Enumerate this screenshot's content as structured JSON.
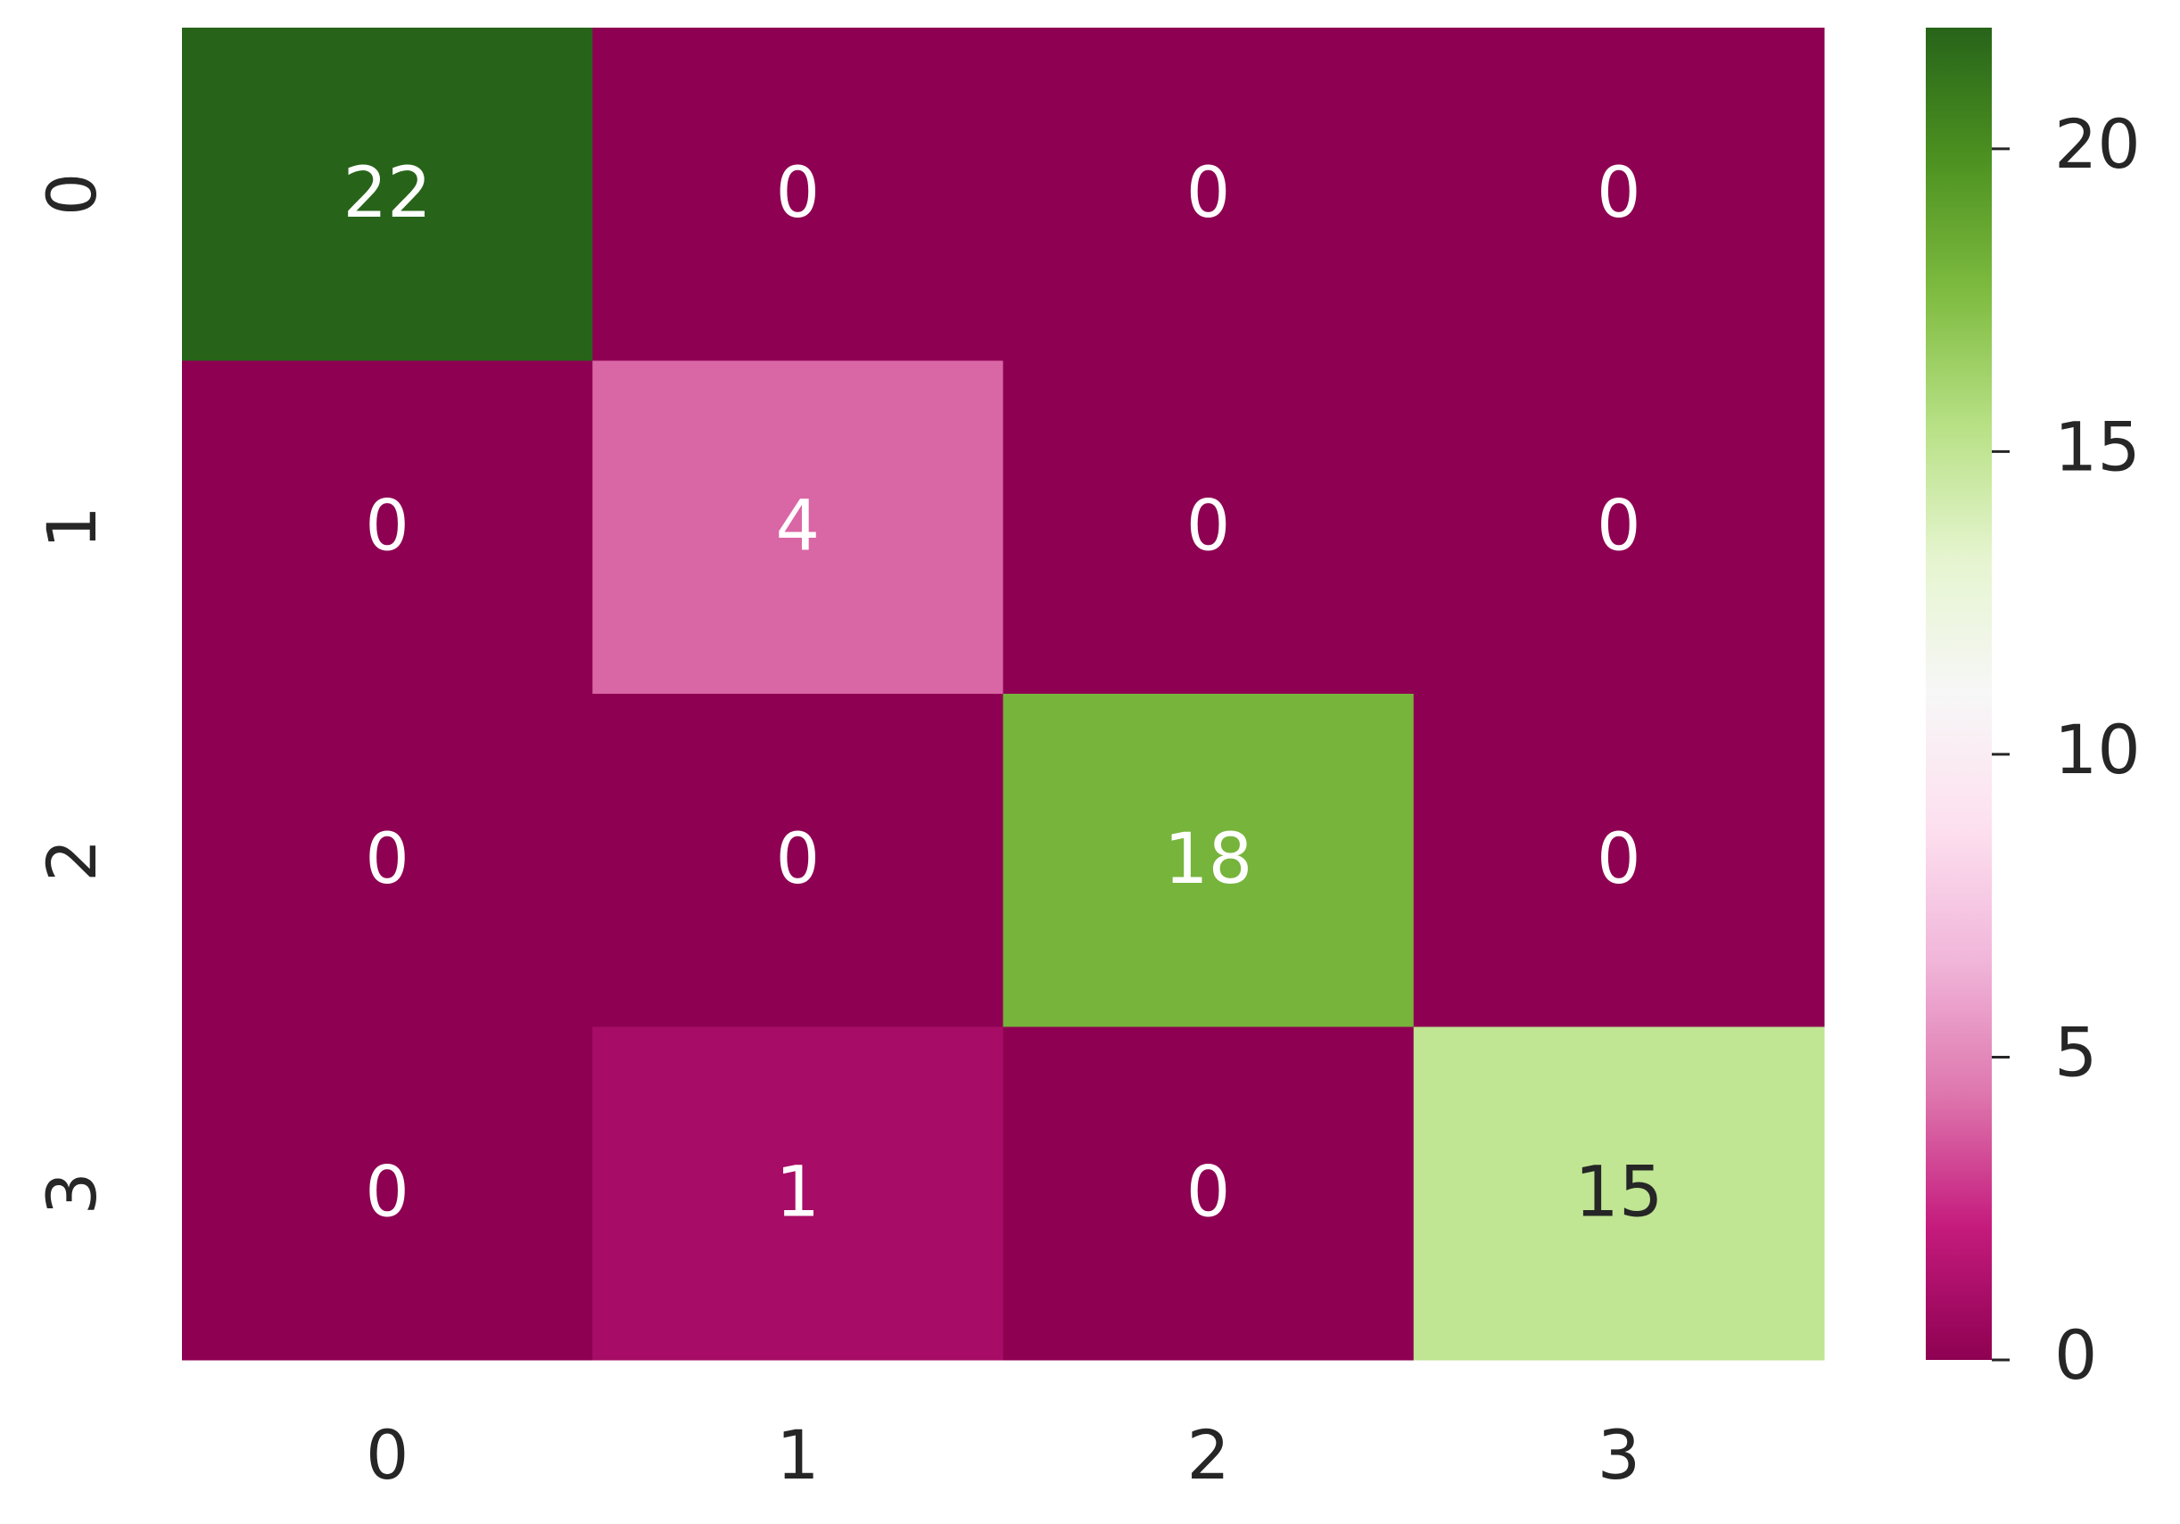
{
  "chart_data": {
    "type": "heatmap",
    "x_categories": [
      "0",
      "1",
      "2",
      "3"
    ],
    "y_categories": [
      "0",
      "1",
      "2",
      "3"
    ],
    "values": [
      [
        22,
        0,
        0,
        0
      ],
      [
        0,
        4,
        0,
        0
      ],
      [
        0,
        0,
        18,
        0
      ],
      [
        0,
        1,
        0,
        15
      ]
    ],
    "colormap": "PiYG",
    "zlim": [
      0,
      22
    ],
    "zticks": [
      0,
      5,
      10,
      15,
      20
    ]
  }
}
